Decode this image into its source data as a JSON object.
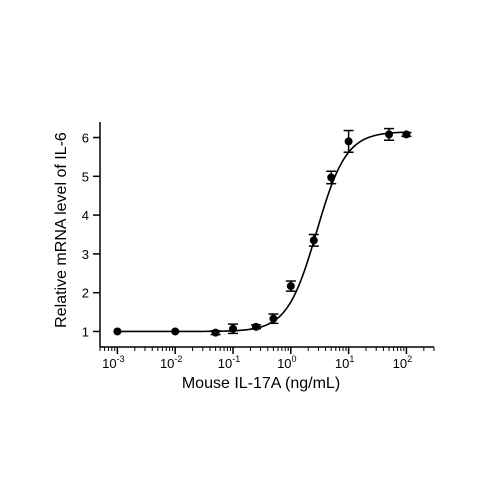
{
  "chart_data": {
    "type": "scatter",
    "xlabel": "Mouse IL-17A (ng/mL)",
    "ylabel": "Relative mRNA level of IL-6",
    "xscale": "log",
    "xlim": [
      0.0005,
      300
    ],
    "ylim": [
      0.6,
      6.4
    ],
    "x_ticks": [
      {
        "value": 0.001,
        "base": "10",
        "exp": "-3"
      },
      {
        "value": 0.01,
        "base": "10",
        "exp": "-2"
      },
      {
        "value": 0.1,
        "base": "10",
        "exp": "-1"
      },
      {
        "value": 1,
        "base": "10",
        "exp": "0"
      },
      {
        "value": 10,
        "base": "10",
        "exp": "1"
      },
      {
        "value": 100,
        "base": "10",
        "exp": "2"
      }
    ],
    "y_ticks": [
      1,
      2,
      3,
      4,
      5,
      6
    ],
    "grid": false,
    "legend": false,
    "marker_color": "#000000",
    "points": [
      {
        "x": 0.001,
        "y": 1.0,
        "err": 0.0
      },
      {
        "x": 0.01,
        "y": 1.0,
        "err": 0.0
      },
      {
        "x": 0.05,
        "y": 0.97,
        "err": 0.05
      },
      {
        "x": 0.1,
        "y": 1.07,
        "err": 0.12
      },
      {
        "x": 0.25,
        "y": 1.12,
        "err": 0.05
      },
      {
        "x": 0.5,
        "y": 1.33,
        "err": 0.12
      },
      {
        "x": 1.0,
        "y": 2.17,
        "err": 0.13
      },
      {
        "x": 2.5,
        "y": 3.35,
        "err": 0.15
      },
      {
        "x": 5.0,
        "y": 4.97,
        "err": 0.16
      },
      {
        "x": 10.0,
        "y": 5.9,
        "err": 0.28
      },
      {
        "x": 50.0,
        "y": 6.08,
        "err": 0.15
      },
      {
        "x": 100.0,
        "y": 6.08,
        "err": 0.05
      }
    ],
    "fit": {
      "model": "4PL",
      "bottom": 1.0,
      "top": 6.15,
      "ec50": 2.8,
      "hill": 1.7,
      "x_range": [
        0.001,
        100
      ]
    }
  }
}
